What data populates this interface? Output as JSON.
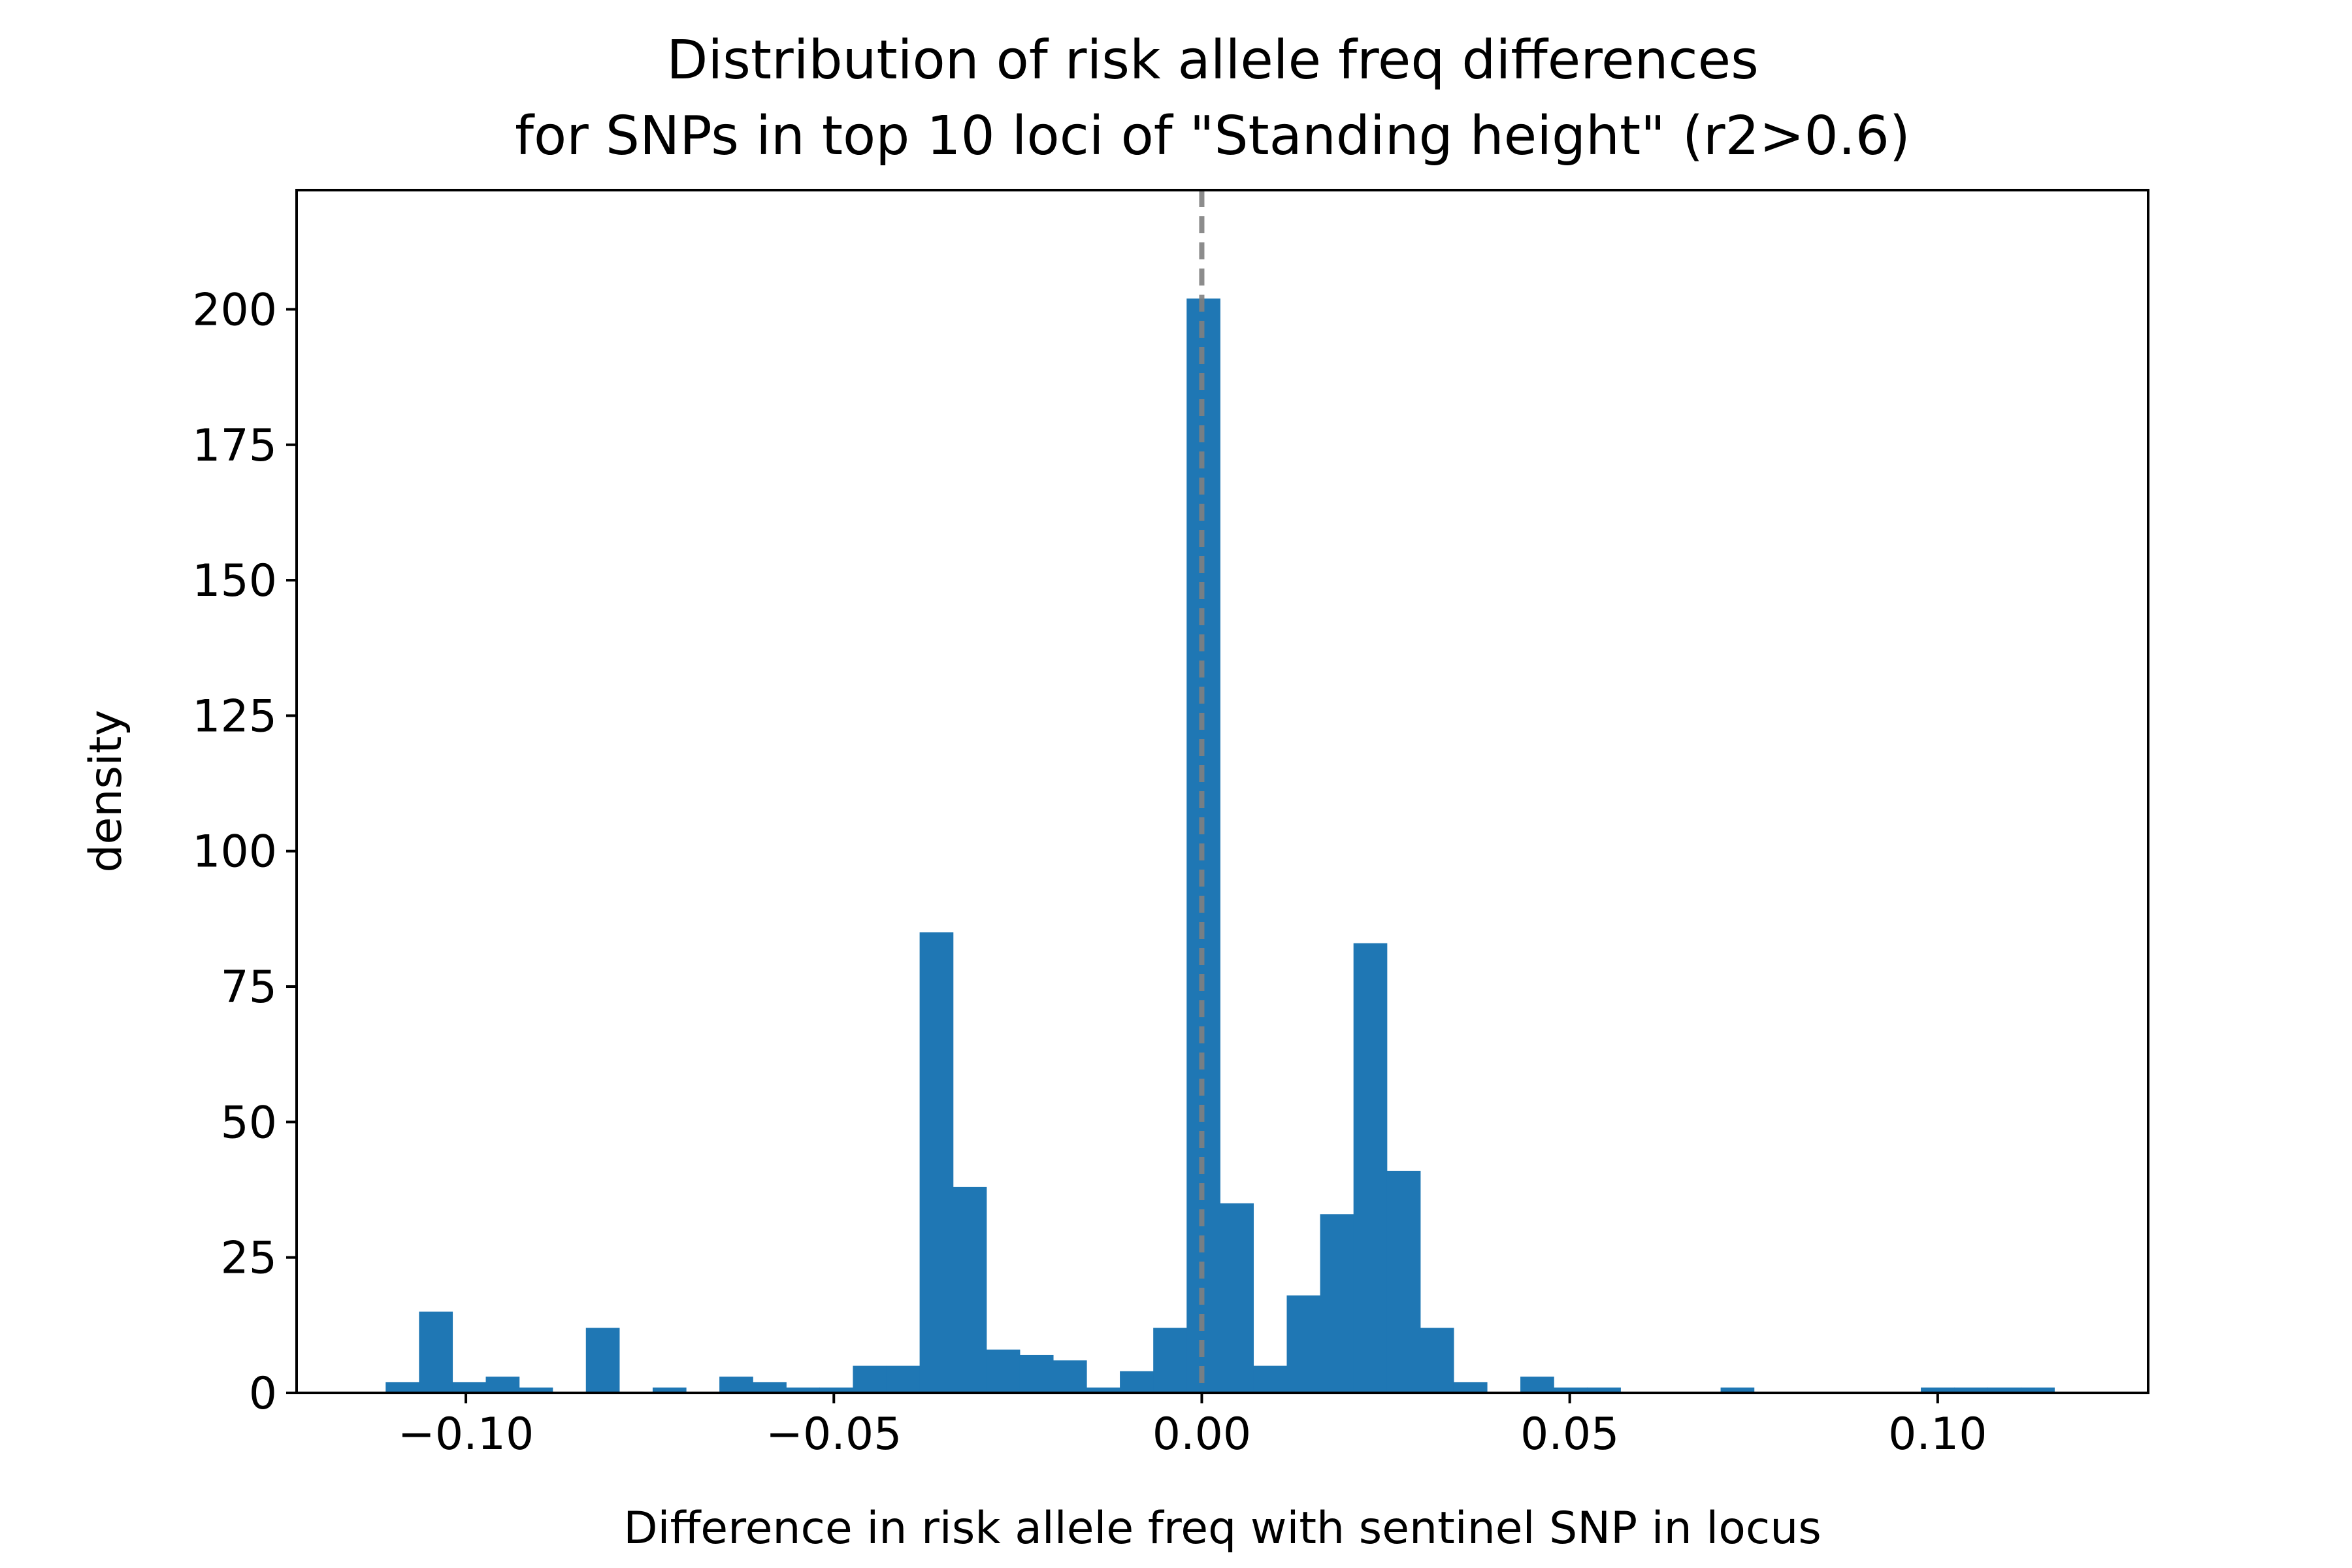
{
  "chart_data": {
    "type": "bar",
    "title_lines": [
      "Distribution of risk allele freq differences",
      "for SNPs in top 10 loci of \"Standing height\" (r2>0.6)"
    ],
    "xlabel": "Difference in risk allele freq with sentinel SNP in locus",
    "ylabel": "density",
    "xlim": [
      -0.123,
      0.1286
    ],
    "ylim": [
      0,
      222
    ],
    "x_ticks": [
      -0.1,
      -0.05,
      0.0,
      0.05,
      0.1
    ],
    "x_tick_labels": [
      "−0.10",
      "−0.05",
      "0.00",
      "0.05",
      "0.10"
    ],
    "y_ticks": [
      0,
      25,
      50,
      75,
      100,
      125,
      150,
      175,
      200
    ],
    "y_tick_labels": [
      "0",
      "25",
      "50",
      "75",
      "100",
      "125",
      "150",
      "175",
      "200"
    ],
    "bin_start": -0.1109,
    "bin_width": 0.004535,
    "values": [
      2,
      15,
      2,
      3,
      1,
      0,
      12,
      0,
      1,
      0,
      3,
      2,
      1,
      1,
      5,
      5,
      85,
      38,
      8,
      7,
      6,
      1,
      4,
      12,
      202,
      35,
      5,
      18,
      33,
      83,
      41,
      12,
      2,
      0,
      3,
      1,
      1,
      0,
      0,
      0,
      1,
      0,
      0,
      0,
      0,
      0,
      1,
      1,
      1,
      1
    ],
    "reference_line_x": 0.0,
    "bar_color": "#1f77b4",
    "reference_line_color": "#808080",
    "grid": false,
    "legend": false
  }
}
